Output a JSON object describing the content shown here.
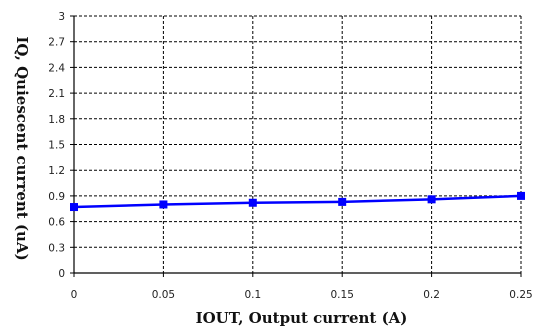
{
  "chart_data": {
    "type": "line",
    "title": "",
    "xlabel": "IOUT, Output current (A)",
    "ylabel": "IQ, Quiescent current (uA)",
    "xlim": [
      0,
      0.25
    ],
    "ylim": [
      0,
      3
    ],
    "x_ticks": [
      "0",
      "0.05",
      "0.1",
      "0.15",
      "0.2",
      "0.25"
    ],
    "y_ticks": [
      "0",
      "0.3",
      "0.6",
      "0.9",
      "1.2",
      "1.5",
      "1.8",
      "2.1",
      "2.4",
      "2.7",
      "3"
    ],
    "grid": true,
    "legend": "none",
    "series": [
      {
        "x": [
          0,
          0.05,
          0.1,
          0.15,
          0.2,
          0.25
        ],
        "y": [
          0.77,
          0.8,
          0.82,
          0.83,
          0.86,
          0.9
        ],
        "color": "#0000ff",
        "marker": "square"
      }
    ]
  }
}
